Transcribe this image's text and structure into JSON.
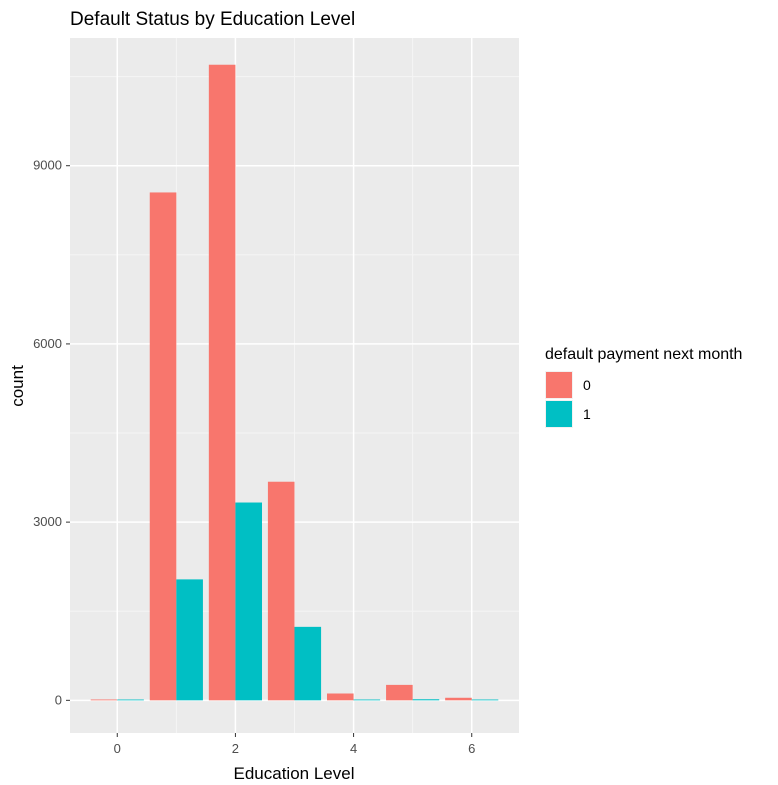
{
  "chart_data": {
    "type": "bar",
    "title": "Default Status by Education Level",
    "xlabel": "Education Level",
    "ylabel": "count",
    "x": [
      0,
      1,
      2,
      3,
      4,
      5,
      6
    ],
    "x_ticks": [
      "0",
      "2",
      "4",
      "6"
    ],
    "y_ticks": [
      "0",
      "3000",
      "6000",
      "9000"
    ],
    "xlim": [
      -0.8,
      6.8
    ],
    "ylim": [
      -550,
      11150
    ],
    "grid": true,
    "legend": {
      "title": "default payment next month",
      "placement": "right"
    },
    "series": [
      {
        "name": "0",
        "color": "#F8766D",
        "values": [
          14,
          8550,
          10700,
          3680,
          115,
          260,
          43
        ]
      },
      {
        "name": "1",
        "color": "#00BFC4",
        "values": [
          0,
          2036,
          3330,
          1237,
          7,
          18,
          8
        ]
      }
    ]
  }
}
